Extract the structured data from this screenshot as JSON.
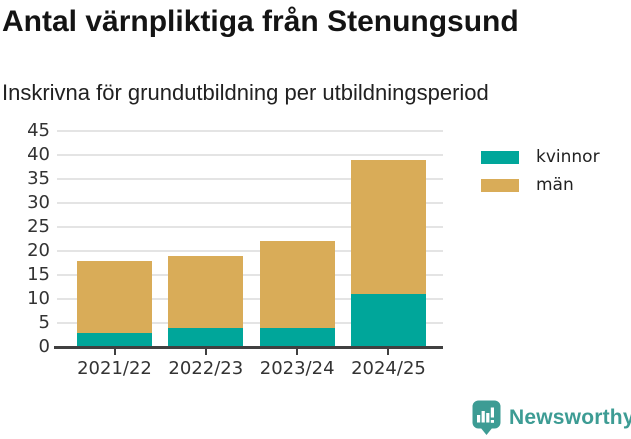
{
  "header": {
    "title": "Antal värnpliktiga från Stenungsund",
    "subtitle": "Inskrivna för grundutbildning per utbildningsperiod"
  },
  "chart_data": {
    "type": "bar",
    "stacked": true,
    "categories": [
      "2021/22",
      "2022/23",
      "2023/24",
      "2024/25"
    ],
    "series": [
      {
        "name": "kvinnor",
        "color": "#00a69a",
        "values": [
          3,
          4,
          4,
          11
        ]
      },
      {
        "name": "män",
        "color": "#d9ac58",
        "values": [
          15,
          15,
          18,
          28
        ]
      }
    ],
    "totals": [
      18,
      19,
      22,
      39
    ],
    "title": "Antal värnpliktiga från Stenungsund",
    "subtitle": "Inskrivna för grundutbildning per utbildningsperiod",
    "xlabel": "",
    "ylabel": "",
    "ylim": [
      0,
      45
    ],
    "yticks": [
      0,
      5,
      10,
      15,
      20,
      25,
      30,
      35,
      40,
      45
    ],
    "grid": true,
    "legend_position": "right",
    "legend_items": [
      "kvinnor",
      "män"
    ]
  },
  "colors": {
    "kvinnor": "#00a69a",
    "man": "#d9ac58",
    "gridline": "#e4e4e4",
    "axis": "#404040",
    "brand": "#3d9c94"
  },
  "footer": {
    "brand": "Newsworthy",
    "logo_icon": "bar-chart-speech-bubble-icon"
  }
}
